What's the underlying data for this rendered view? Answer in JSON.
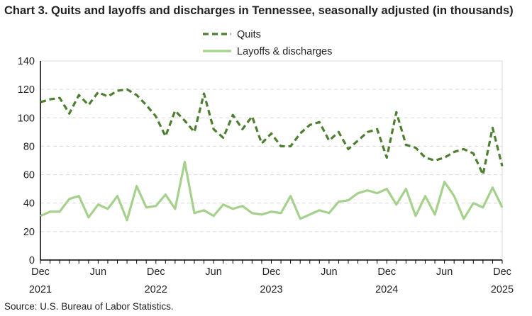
{
  "chart_data": {
    "type": "line",
    "title": "Chart 3. Quits and layoffs and discharges in Tennessee, seasonally adjusted (in thousands)",
    "source": "Source: U.S. Bureau of Labor Statistics.",
    "xlabel": "",
    "ylabel": "",
    "ylim": [
      0,
      140
    ],
    "yticks": [
      0,
      20,
      40,
      60,
      80,
      100,
      120,
      140
    ],
    "x_start": "Dec 2021",
    "x_end": "Dec 2025",
    "xtick_labels": [
      {
        "month": "Dec",
        "year": "2021",
        "index": 0
      },
      {
        "month": "Jun",
        "year": "",
        "index": 6
      },
      {
        "month": "Dec",
        "year": "2022",
        "index": 12
      },
      {
        "month": "Jun",
        "year": "",
        "index": 18
      },
      {
        "month": "Dec",
        "year": "2023",
        "index": 24
      },
      {
        "month": "Jun",
        "year": "",
        "index": 30
      },
      {
        "month": "Dec",
        "year": "2024",
        "index": 36
      },
      {
        "month": "Jun",
        "year": "",
        "index": 42
      },
      {
        "month": "Dec",
        "year": "2025",
        "index": 48
      }
    ],
    "grid": true,
    "legend_position": "top",
    "series": [
      {
        "name": "Quits",
        "color": "#4e7e2f",
        "style": "dashed",
        "values": [
          111,
          113,
          114,
          103,
          116,
          109,
          118,
          115,
          119,
          120,
          116,
          109,
          101,
          87,
          105,
          98,
          90,
          117,
          92,
          86,
          102,
          92,
          101,
          82,
          89,
          80,
          80,
          89,
          95,
          97,
          84,
          90,
          78,
          84,
          90,
          92,
          72,
          104,
          81,
          79,
          72,
          70,
          72,
          76,
          78,
          75,
          60,
          93,
          66
        ]
      },
      {
        "name": "Layoffs & discharges",
        "color": "#a5d18d",
        "style": "solid",
        "values": [
          31,
          34,
          34,
          43,
          45,
          30,
          39,
          36,
          45,
          28,
          52,
          37,
          38,
          46,
          36,
          69,
          33,
          35,
          31,
          39,
          36,
          38,
          33,
          32,
          34,
          33,
          45,
          29,
          32,
          35,
          33,
          41,
          42,
          47,
          49,
          47,
          50,
          39,
          50,
          31,
          45,
          32,
          55,
          45,
          29,
          40,
          37,
          51,
          37
        ]
      }
    ]
  }
}
